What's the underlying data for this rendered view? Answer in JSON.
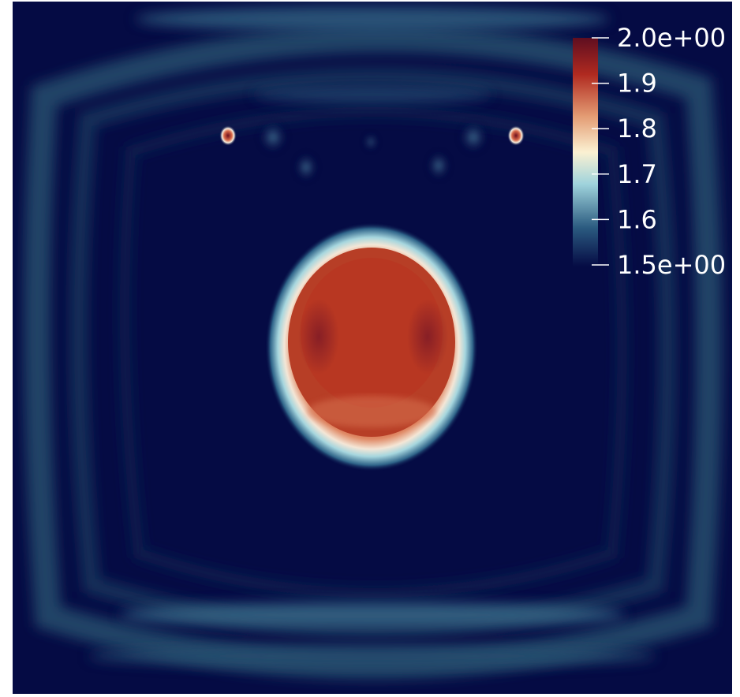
{
  "chart_data": {
    "type": "heatmap",
    "title": "",
    "colormap": {
      "name": "Cool to Warm (diverging)",
      "stops": [
        "#050b44",
        "#2b5b80",
        "#9fd3dc",
        "#fbf1d2",
        "#e39a72",
        "#b02a20",
        "#5f0e20"
      ]
    },
    "colorbar": {
      "range": [
        1.5,
        2.0
      ],
      "ticks": [
        {
          "value": 2.0,
          "label": "2.0e+00"
        },
        {
          "value": 1.9,
          "label": "1.9"
        },
        {
          "value": 1.8,
          "label": "1.8"
        },
        {
          "value": 1.7,
          "label": "1.7"
        },
        {
          "value": 1.6,
          "label": "1.6"
        },
        {
          "value": 1.5,
          "label": "1.5e+00"
        }
      ]
    },
    "field": {
      "background_value": 1.5,
      "central_disc_value": 1.93,
      "disc_halo_value": 1.68,
      "hot_spot_value": 1.95,
      "edge_ripple_value": 1.58
    }
  }
}
